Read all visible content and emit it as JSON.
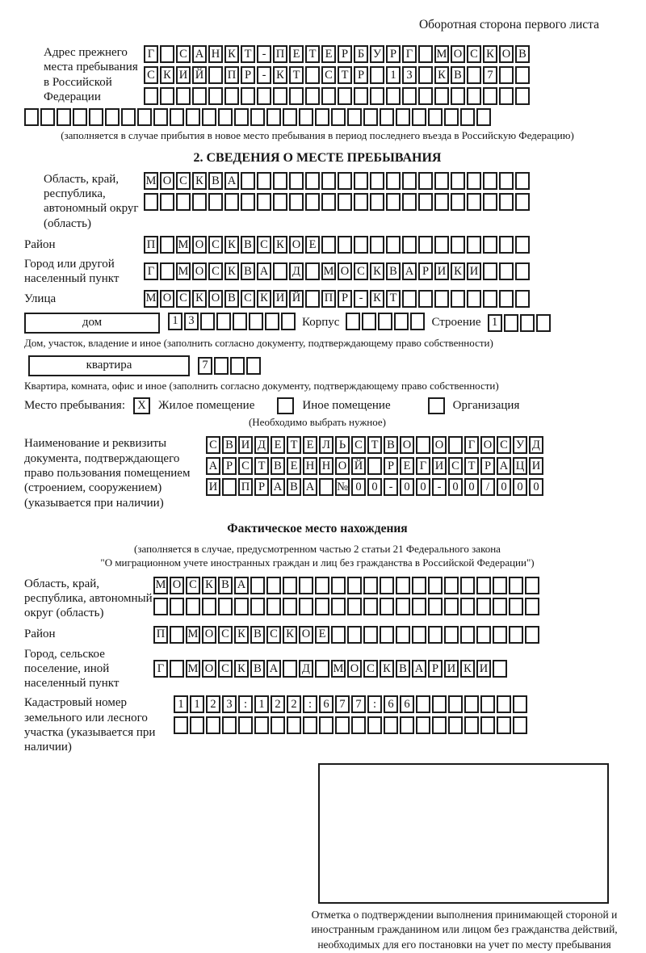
{
  "page": {
    "header_note": "Оборотная сторона первого листа"
  },
  "prev_address": {
    "label": "Адрес прежнего места пребывания в Российской Федерации",
    "rows": [
      {
        "chars": "Г САНКТ-ПЕТЕРБУРГ МОСКОВ",
        "len": 24
      },
      {
        "chars": "СКИЙ ПР-КТ СТР 13 КВ 7",
        "len": 24
      },
      {
        "chars": "",
        "len": 24
      },
      {
        "chars": "",
        "len": 29
      }
    ],
    "note": "(заполняется в случае прибытия в новое место пребывания в период последнего въезда в Российскую Федерацию)"
  },
  "section2": {
    "title": "2. СВЕДЕНИЯ О МЕСТЕ ПРЕБЫВАНИЯ",
    "region": {
      "label": "Область, край, республика, автономный округ (область)",
      "rows": [
        {
          "chars": "МОСКВА",
          "len": 24
        },
        {
          "chars": "",
          "len": 24
        }
      ]
    },
    "district": {
      "label": "Район",
      "row": {
        "chars": "П МОСКВСКОЕ",
        "len": 24
      }
    },
    "city": {
      "label": "Город или другой населенный пункт",
      "row": {
        "chars": "Г МОСКВА Д МОСКВАРИКИ",
        "len": 24
      }
    },
    "street": {
      "label": "Улица",
      "row": {
        "chars": "МОСКОВСКИЙ ПР-КТ",
        "len": 24
      }
    },
    "house": {
      "label": "дом",
      "row": {
        "chars": "13",
        "len": 8
      },
      "korpus_label": "Корпус",
      "korpus_row": {
        "chars": "",
        "len": 5
      },
      "stroenie_label": "Строение",
      "stroenie_row": {
        "chars": "1",
        "len": 4
      },
      "note": "Дом, участок, владение и иное (заполнить согласно документу, подтверждающему право собственности)"
    },
    "apartment": {
      "label": "квартира",
      "row": {
        "chars": "7",
        "len": 4
      },
      "note": "Квартира, комната, офис и иное (заполнить согласно документу, подтверждающему право собственности)"
    },
    "stay_place": {
      "label": "Место пребывания:",
      "options": [
        {
          "label": "Жилое помещение",
          "checked": "X"
        },
        {
          "label": "Иное помещение",
          "checked": ""
        },
        {
          "label": "Организация",
          "checked": ""
        }
      ],
      "note": "(Необходимо выбрать нужное)"
    },
    "document": {
      "label": "Наименование и реквизиты документа, подтверждающего право пользования помещением (строением, сооружением) (указывается при наличии)",
      "rows": [
        {
          "chars": "СВИДЕТЕЛЬСТВО О ГОСУД",
          "len": 21
        },
        {
          "chars": "АРСТВЕННОЙ РЕГИСТРАЦИ",
          "len": 21
        },
        {
          "chars": "И ПРАВА №00-00-00/000",
          "len": 21
        }
      ]
    }
  },
  "fact_location": {
    "title": "Фактическое место нахождения",
    "notes": [
      "(заполняется в случае, предусмотренном частью 2 статьи 21 Федерального закона",
      "\"О миграционном учете иностранных граждан и лиц без гражданства в Российской Федерации\")"
    ],
    "region": {
      "label": "Область, край, республика, автономный округ (область)",
      "rows": [
        {
          "chars": "МОСКВА",
          "len": 24
        },
        {
          "chars": "",
          "len": 24
        }
      ]
    },
    "district": {
      "label": "Район",
      "row": {
        "chars": "П МОСКВСКОЕ",
        "len": 24
      }
    },
    "city": {
      "label": "Город, сельское поселение, иной населенный пункт",
      "row": {
        "chars": "Г МОСКВА Д МОСКВАРИКИ",
        "len": 22
      }
    },
    "cadastral": {
      "label": "Кадастровый номер земельного или лесного участка (указывается при наличии)",
      "rows": [
        {
          "chars": "1123:122:677:66",
          "len": 22
        },
        {
          "chars": "",
          "len": 22
        }
      ]
    },
    "stamp_caption": "Отметка о подтверждении выполнения принимающей стороной и иностранным гражданином или лицом без гражданства действий, необходимых для его постановки на учет по месту пребывания"
  }
}
